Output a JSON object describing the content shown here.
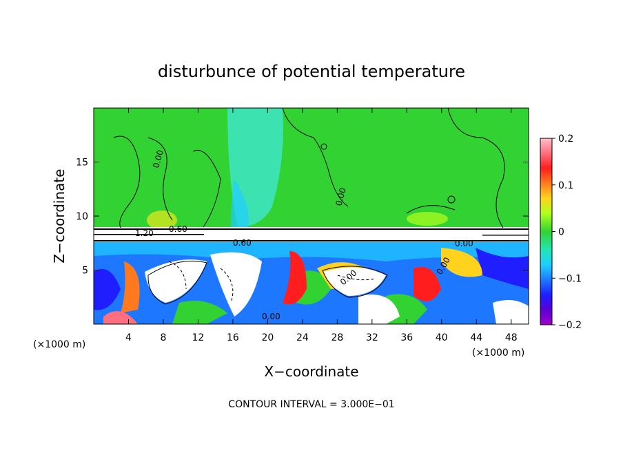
{
  "chart_data": {
    "type": "heatmap",
    "title": "disturbunce of potential temperature",
    "xlabel": "X−coordinate",
    "ylabel": "Z−coordinate",
    "x_unit_left": "(×1000 m)",
    "x_unit_right": "(×1000 m)",
    "xlim": [
      0,
      50
    ],
    "ylim": [
      0,
      20
    ],
    "xticks": [
      "4",
      "8",
      "12",
      "16",
      "20",
      "24",
      "28",
      "32",
      "36",
      "40",
      "44",
      "48"
    ],
    "yticks": [
      "5",
      "10",
      "15"
    ],
    "colorbar": {
      "range": [
        -0.2,
        0.2
      ],
      "ticks": [
        "0.2",
        "0.1",
        "0",
        "−0.1",
        "−0.2"
      ]
    },
    "contour_labels": [
      "0.00",
      "1.20",
      "0.60",
      "0.60",
      "0.00",
      "0.00",
      "0.00",
      "0.00",
      "0.00"
    ],
    "footer": "CONTOUR INTERVAL = 3.000E−01",
    "colors": {
      "green_field": "#33d233",
      "cyan_plume": "#3ee6c8",
      "white_core": "#ffffff",
      "blue_deep": "#1f3fff"
    }
  }
}
